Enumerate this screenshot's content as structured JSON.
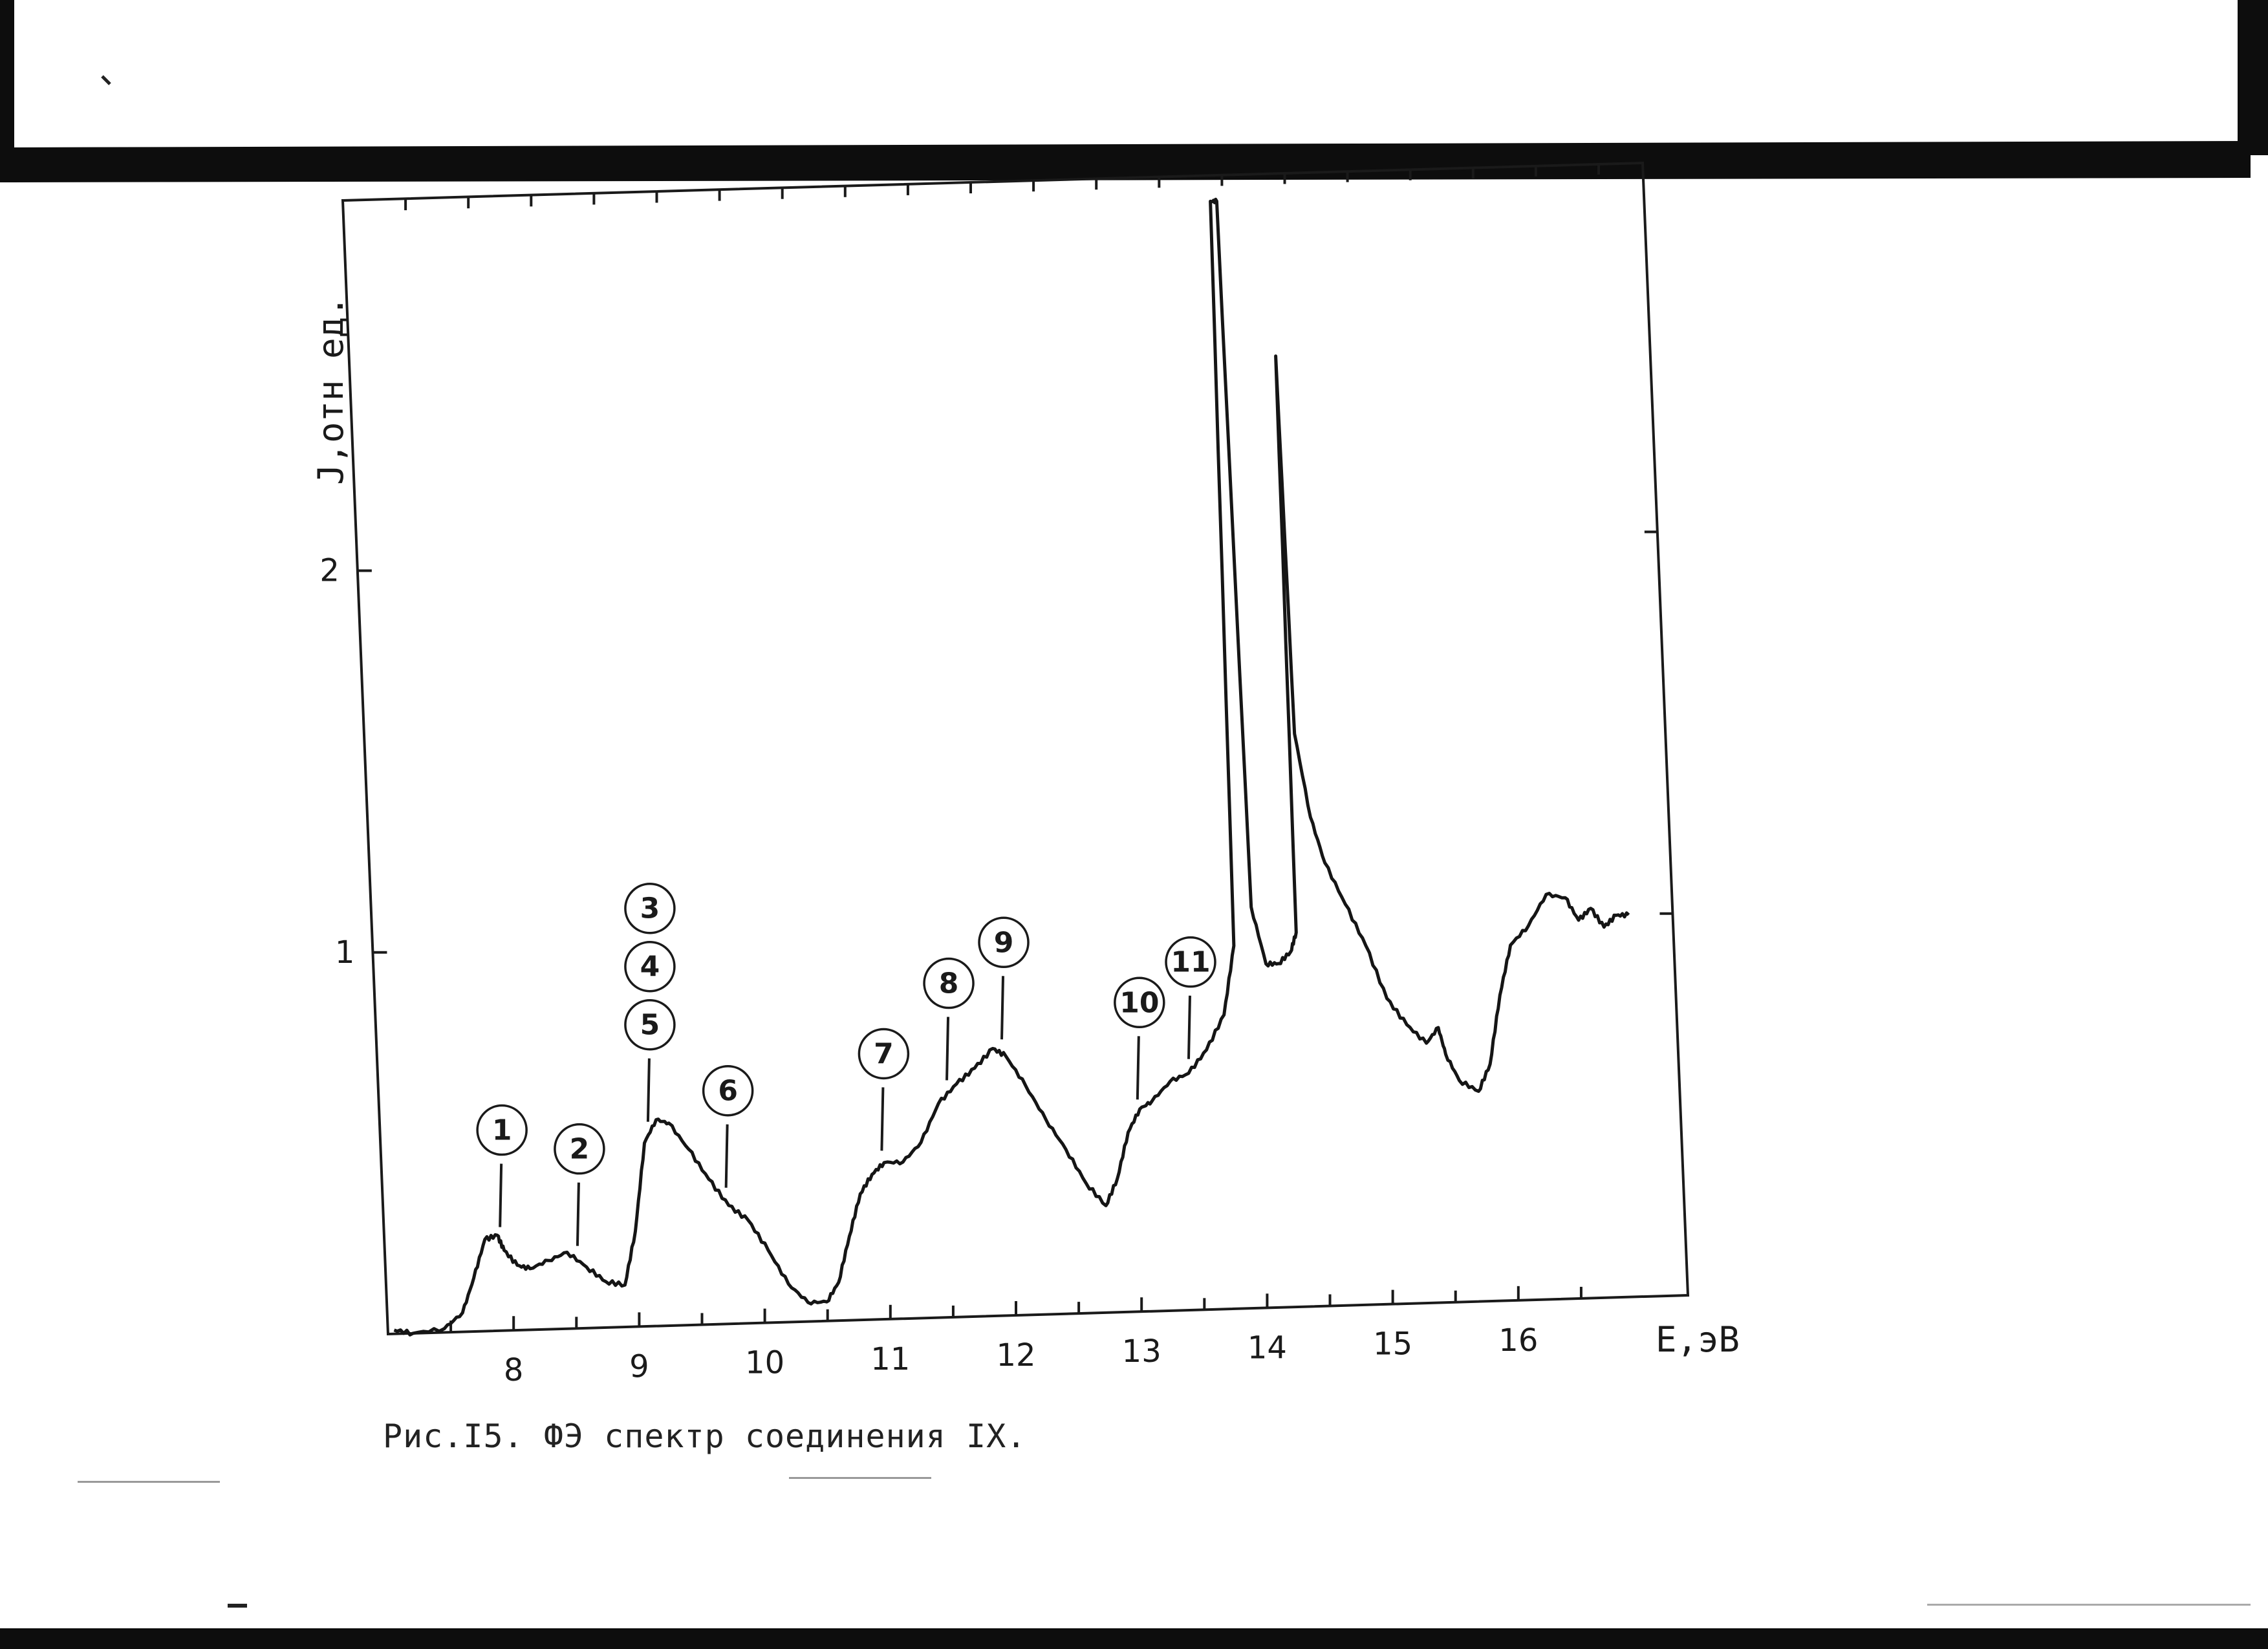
{
  "caption": "Рис.I5. ФЭ спектр соединения IX.",
  "chart_data": {
    "type": "line",
    "title": "",
    "xlabel": "E,эВ",
    "ylabel": "J,отн ед.",
    "xlim": [
      7.0,
      17.35
    ],
    "ylim": [
      0,
      2.97
    ],
    "xticks": [
      8,
      9,
      10,
      11,
      12,
      13,
      14,
      15,
      16
    ],
    "xtick_labels": [
      "8",
      "9",
      "10",
      "11",
      "12",
      "13",
      "14",
      "15",
      "16"
    ],
    "yticks": [
      1,
      2
    ],
    "ytick_labels": [
      "1",
      "2"
    ],
    "grid": false,
    "line_color": "#151515",
    "series": [
      {
        "x": [
          7.05,
          7.2,
          7.45,
          7.6,
          7.7,
          7.8,
          7.9,
          7.95,
          8.05,
          8.15,
          8.3,
          8.45,
          8.6,
          8.75,
          8.9,
          9.0,
          9.1,
          9.2,
          9.3,
          9.45,
          9.6,
          9.75,
          9.9,
          10.05,
          10.2,
          10.35,
          10.5,
          10.6,
          10.7,
          10.8,
          10.9,
          11.0,
          11.15,
          11.3,
          11.45,
          11.6,
          11.75,
          11.9,
          12.0,
          12.15,
          12.3,
          12.45,
          12.6,
          12.75,
          12.85,
          12.95,
          13.05,
          13.15,
          13.3,
          13.45,
          13.6,
          13.75,
          13.85,
          13.9,
          13.95,
          14.0,
          14.1,
          14.2,
          14.3,
          14.35,
          14.37,
          14.4,
          14.5,
          14.6,
          14.75,
          14.9,
          15.05,
          15.2,
          15.35,
          15.45,
          15.5,
          15.6,
          15.75,
          15.85,
          15.95,
          16.05,
          16.2,
          16.35,
          16.5,
          16.6,
          16.7,
          16.8,
          16.9,
          17.0
        ],
        "y": [
          0.01,
          0.0,
          0.01,
          0.05,
          0.14,
          0.24,
          0.25,
          0.21,
          0.17,
          0.16,
          0.18,
          0.2,
          0.16,
          0.12,
          0.11,
          0.25,
          0.48,
          0.54,
          0.53,
          0.46,
          0.38,
          0.31,
          0.27,
          0.19,
          0.1,
          0.05,
          0.05,
          0.1,
          0.22,
          0.33,
          0.38,
          0.41,
          0.41,
          0.46,
          0.56,
          0.61,
          0.65,
          0.7,
          0.68,
          0.6,
          0.51,
          0.43,
          0.34,
          0.28,
          0.35,
          0.47,
          0.53,
          0.55,
          0.6,
          0.62,
          0.68,
          0.77,
          0.95,
          2.9,
          2.9,
          1.05,
          0.9,
          0.9,
          0.93,
          0.98,
          2.49,
          1.5,
          1.28,
          1.16,
          1.05,
          0.94,
          0.8,
          0.73,
          0.68,
          0.72,
          0.65,
          0.58,
          0.55,
          0.62,
          0.8,
          0.93,
          0.98,
          1.06,
          1.05,
          0.99,
          1.02,
          0.97,
          1.0,
          1.0
        ]
      }
    ],
    "annotations": [
      {
        "label": "1",
        "x": 7.92
      },
      {
        "label": "2",
        "x": 8.53
      },
      {
        "label": "3",
        "x": 9.13
      },
      {
        "label": "4",
        "x": 9.13
      },
      {
        "label": "5",
        "x": 9.13
      },
      {
        "label": "6",
        "x": 9.73
      },
      {
        "label": "7",
        "x": 10.98
      },
      {
        "label": "8",
        "x": 11.52
      },
      {
        "label": "9",
        "x": 11.97
      },
      {
        "label": "10",
        "x": 13.03
      },
      {
        "label": "11",
        "x": 13.45
      }
    ]
  }
}
